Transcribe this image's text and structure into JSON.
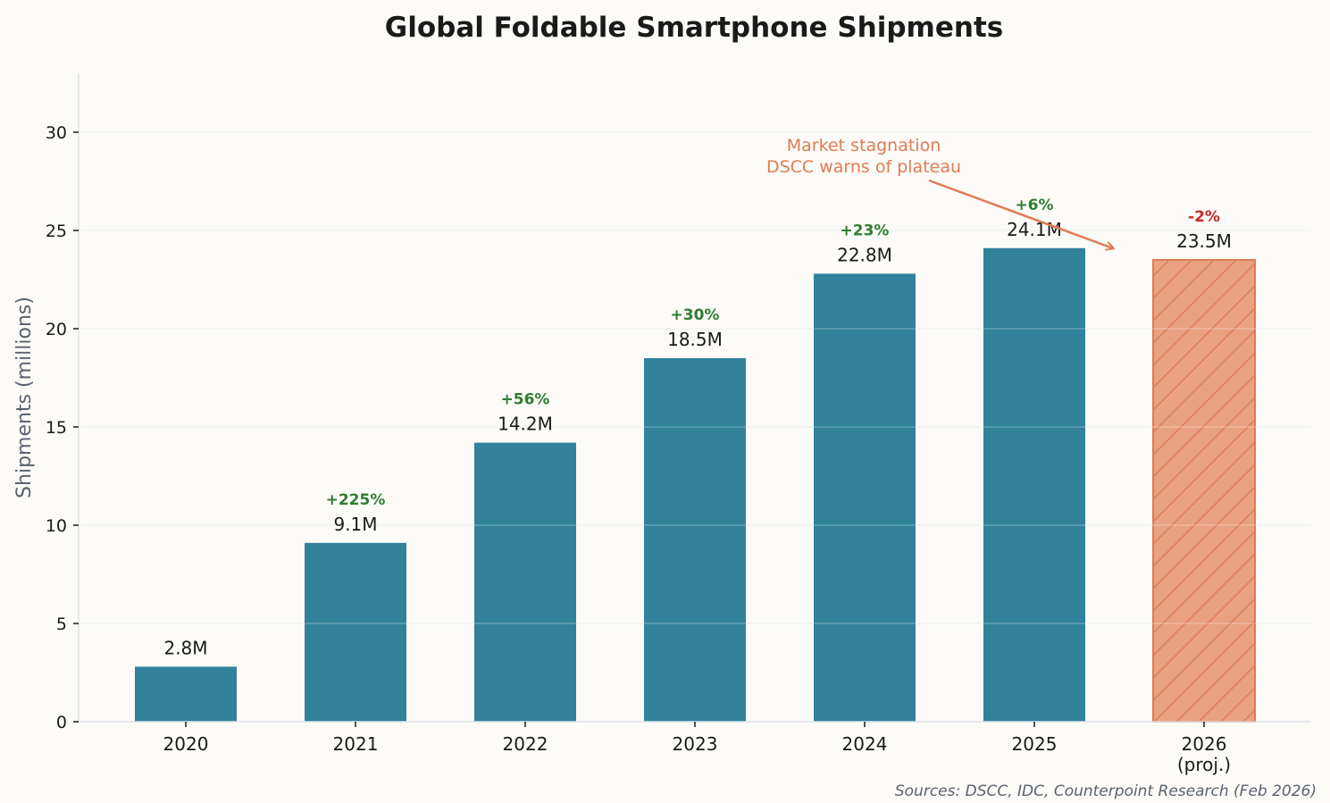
{
  "chart_data": {
    "type": "bar",
    "title": "Global Foldable Smartphone Shipments",
    "xlabel": "",
    "ylabel": "Shipments (millions)",
    "ylim": [
      0,
      33
    ],
    "yticks": [
      0,
      5,
      10,
      15,
      20,
      25,
      30
    ],
    "grid": true,
    "categories": [
      "2020",
      "2021",
      "2022",
      "2023",
      "2024",
      "2025",
      "2026\n(proj.)"
    ],
    "values": [
      2.8,
      9.1,
      14.2,
      18.5,
      22.8,
      24.1,
      23.5
    ],
    "value_labels": [
      "2.8M",
      "9.1M",
      "14.2M",
      "18.5M",
      "22.8M",
      "24.1M",
      "23.5M"
    ],
    "growth_labels": [
      "",
      "+225%",
      "+56%",
      "+30%",
      "+23%",
      "+6%",
      "-2%"
    ],
    "projected": [
      false,
      false,
      false,
      false,
      false,
      false,
      true
    ],
    "annotation": {
      "lines": [
        "Market stagnation",
        "DSCC warns of plateau"
      ],
      "points_to": "2025-2026"
    },
    "source": "Sources: DSCC, IDC, Counterpoint Research (Feb 2026)",
    "colors": {
      "bar": "#31829a",
      "projected_fill": "#e8a181",
      "projected_edge": "#e07b54",
      "positive": "#2e7d32",
      "negative": "#c62828",
      "annotation": "#e07b54",
      "background": "#fcfbf7"
    }
  }
}
